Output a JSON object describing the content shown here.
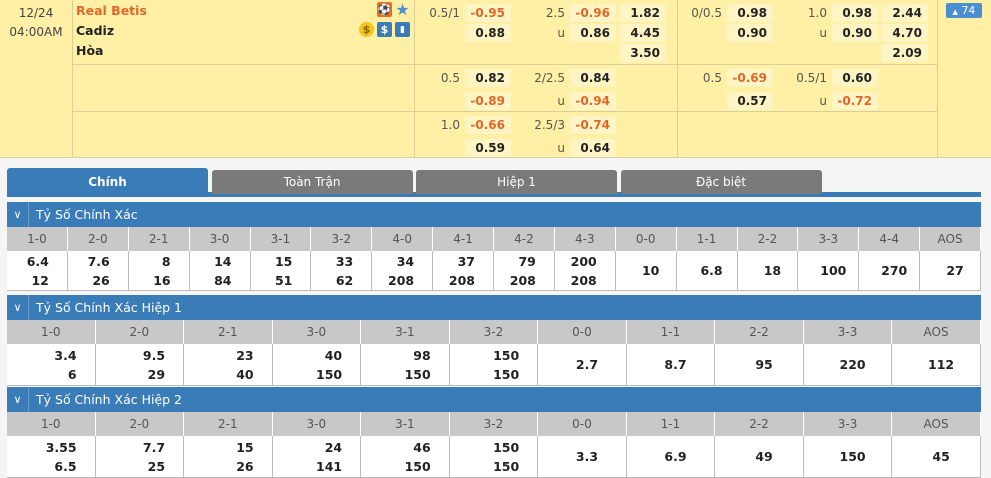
{
  "match": {
    "date": "12/24",
    "time": "04:00AM",
    "home": "Real Betis",
    "away": "Cadiz",
    "draw": "Hòa",
    "more_badge": "74",
    "badge_icon": "triangle-up-icon",
    "icons": [
      "player-icon",
      "star-icon",
      "coin-icon",
      "dollar-icon",
      "stats-icon"
    ]
  },
  "colors": {
    "home_team": "#e0672a",
    "negative_odds": "#e0672a",
    "header_blue": "#3a7cb8",
    "row_bg": "#fff0a6"
  },
  "odds_blocks": [
    {
      "rows": [
        [
          "0.5/1",
          "-0.95",
          "2.5",
          "-0.96",
          "1.82"
        ],
        [
          "",
          "0.88",
          "u",
          "0.86",
          "4.45"
        ],
        [
          "",
          "",
          "",
          "",
          "3.50"
        ]
      ]
    },
    {
      "rows": [
        [
          "0/0.5",
          "0.98",
          "1.0",
          "0.98",
          "2.44"
        ],
        [
          "",
          "0.90",
          "u",
          "0.90",
          "4.70"
        ],
        [
          "",
          "",
          "",
          "",
          "2.09"
        ]
      ]
    },
    {
      "rows": [
        [
          "0.5",
          "0.82",
          "2/2.5",
          "0.84",
          ""
        ],
        [
          "",
          "-0.89",
          "u",
          "-0.94",
          ""
        ]
      ]
    },
    {
      "rows": [
        [
          "0.5",
          "-0.69",
          "0.5/1",
          "0.60",
          ""
        ],
        [
          "",
          "0.57",
          "u",
          "-0.72",
          ""
        ]
      ]
    },
    {
      "rows": [
        [
          "1.0",
          "-0.66",
          "2.5/3",
          "-0.74",
          ""
        ],
        [
          "",
          "0.59",
          "u",
          "0.64",
          ""
        ]
      ]
    }
  ],
  "tabs": [
    "Chính",
    "Toàn Trận",
    "Hiệp 1",
    "Đặc biệt"
  ],
  "sections": [
    {
      "title": "Tỷ Số Chính Xác",
      "headers": [
        "1-0",
        "2-0",
        "2-1",
        "3-0",
        "3-1",
        "3-2",
        "4-0",
        "4-1",
        "4-2",
        "4-3",
        "0-0",
        "1-1",
        "2-2",
        "3-3",
        "4-4",
        "AOS"
      ],
      "values": [
        [
          "6.4",
          "12"
        ],
        [
          "7.6",
          "26"
        ],
        [
          "8",
          "16"
        ],
        [
          "14",
          "84"
        ],
        [
          "15",
          "51"
        ],
        [
          "33",
          "62"
        ],
        [
          "34",
          "208"
        ],
        [
          "37",
          "208"
        ],
        [
          "79",
          "208"
        ],
        [
          "200",
          "208"
        ],
        [
          "10"
        ],
        [
          "6.8"
        ],
        [
          "18"
        ],
        [
          "100"
        ],
        [
          "270"
        ],
        [
          "27"
        ]
      ]
    },
    {
      "title": "Tỷ Số Chính Xác Hiệp 1",
      "headers": [
        "1-0",
        "2-0",
        "2-1",
        "3-0",
        "3-1",
        "3-2",
        "0-0",
        "1-1",
        "2-2",
        "3-3",
        "AOS"
      ],
      "values": [
        [
          "3.4",
          "6"
        ],
        [
          "9.5",
          "29"
        ],
        [
          "23",
          "40"
        ],
        [
          "40",
          "150"
        ],
        [
          "98",
          "150"
        ],
        [
          "150",
          "150"
        ],
        [
          "2.7"
        ],
        [
          "8.7"
        ],
        [
          "95"
        ],
        [
          "220"
        ],
        [
          "112"
        ]
      ]
    },
    {
      "title": "Tỷ Số Chính Xác Hiệp 2",
      "headers": [
        "1-0",
        "2-0",
        "2-1",
        "3-0",
        "3-1",
        "3-2",
        "0-0",
        "1-1",
        "2-2",
        "3-3",
        "AOS"
      ],
      "values": [
        [
          "3.55",
          "6.5"
        ],
        [
          "7.7",
          "25"
        ],
        [
          "15",
          "26"
        ],
        [
          "24",
          "141"
        ],
        [
          "46",
          "150"
        ],
        [
          "150",
          "150"
        ],
        [
          "3.3"
        ],
        [
          "6.9"
        ],
        [
          "49"
        ],
        [
          "150"
        ],
        [
          "45"
        ]
      ]
    }
  ]
}
